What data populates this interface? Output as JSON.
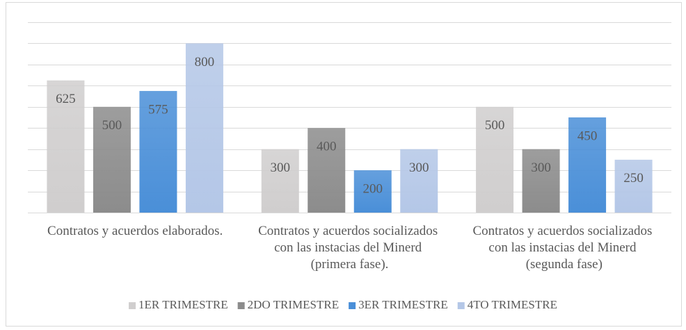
{
  "chart_data": {
    "type": "bar",
    "categories": [
      "Contratos y acuerdos elaborados.",
      "Contratos y acuerdos socializados con las instacias del Minerd (primera fase).",
      "Contratos y acuerdos socializados con las instacias del Minerd (segunda fase)"
    ],
    "series": [
      {
        "name": "1ER TRIMESTRE",
        "color": "#d0cece",
        "values": [
          625,
          300,
          500
        ]
      },
      {
        "name": "2DO TRIMESTRE",
        "color": "#8c8c8c",
        "values": [
          500,
          400,
          300
        ]
      },
      {
        "name": "3ER TRIMESTRE",
        "color": "#4a8fd8",
        "values": [
          575,
          200,
          450
        ]
      },
      {
        "name": "4TO TRIMESTRE",
        "color": "#b4c7e7",
        "values": [
          800,
          300,
          250
        ]
      }
    ],
    "ylim": [
      0,
      900
    ],
    "yticks": [
      0,
      100,
      200,
      300,
      400,
      500,
      600,
      700,
      800,
      900
    ],
    "grid": true,
    "legend": "bottom"
  }
}
